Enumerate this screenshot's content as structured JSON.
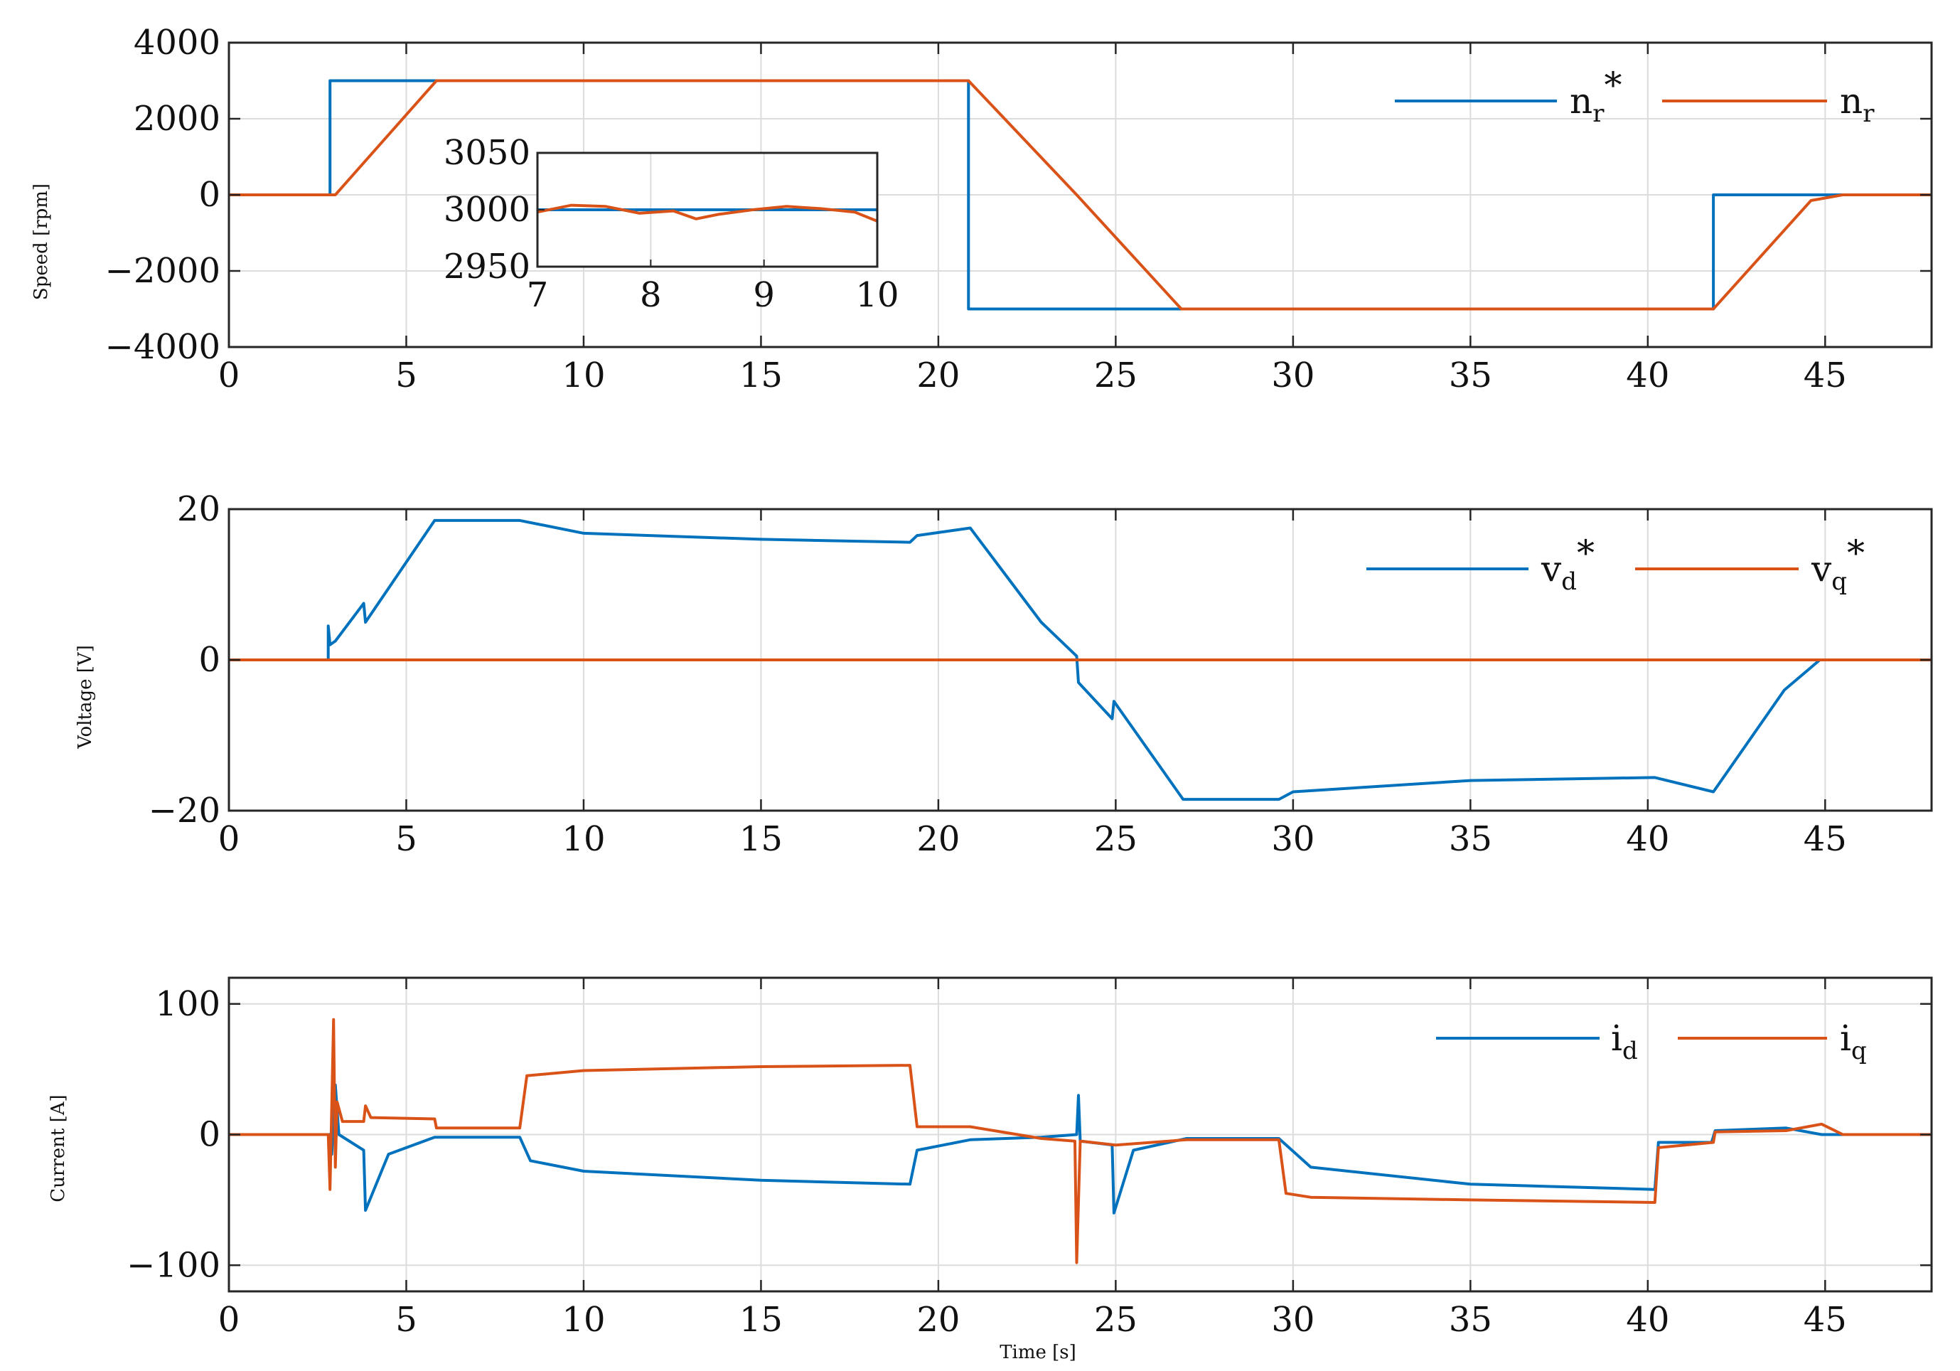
{
  "colors": {
    "blue": "#0072BD",
    "orange": "#D95319",
    "axis": "#262626",
    "grid": "#dcdcdc"
  },
  "chart_data": [
    {
      "type": "line",
      "id": "speed",
      "ylabel": "Speed [rpm]",
      "xlabel": "",
      "xlim": [
        0,
        48
      ],
      "ylim": [
        -4000,
        4000
      ],
      "xticks": [
        0,
        5,
        10,
        15,
        20,
        25,
        30,
        35,
        40,
        45
      ],
      "yticks": [
        -4000,
        -2000,
        0,
        2000,
        4000
      ],
      "ytick_labels": [
        "−4000",
        "−2000",
        "0",
        "2000",
        "4000"
      ],
      "grid": true,
      "legend_position": "top-right",
      "series": [
        {
          "name": "n_r*",
          "legend_main": "n",
          "legend_sub": "r",
          "legend_sup": "*",
          "color": "#0072BD",
          "x": [
            0,
            2.85,
            2.85,
            2.9,
            2.9,
            20.85,
            20.85,
            41.85,
            41.85,
            48
          ],
          "y": [
            0,
            0,
            3000,
            3000,
            3000,
            3000,
            -3000,
            -3000,
            0,
            0
          ]
        },
        {
          "name": "n_r",
          "legend_main": "n",
          "legend_sub": "r",
          "legend_sup": "",
          "color": "#D95319",
          "x": [
            0,
            2.85,
            3.0,
            5.85,
            20.85,
            23.9,
            26.85,
            41.85,
            44.6,
            45.5,
            48
          ],
          "y": [
            0,
            0,
            0,
            3000,
            3000,
            0,
            -3000,
            -3000,
            -150,
            0,
            0
          ]
        }
      ],
      "inset": {
        "xlim": [
          7,
          10
        ],
        "ylim": [
          2950,
          3050
        ],
        "xticks": [
          7,
          8,
          9,
          10
        ],
        "yticks": [
          2950,
          3000,
          3050
        ],
        "series": [
          {
            "name": "n_r*",
            "color": "#0072BD",
            "x": [
              7,
              10
            ],
            "y": [
              3000,
              3000
            ]
          },
          {
            "name": "n_r",
            "color": "#D95319",
            "x": [
              7,
              7.3,
              7.6,
              7.9,
              8.2,
              8.4,
              8.6,
              8.9,
              9.2,
              9.5,
              9.8,
              10
            ],
            "y": [
              2998,
              3004,
              3003,
              2997,
              2999,
              2992,
              2996,
              3000,
              3003,
              3001,
              2998,
              2990
            ]
          }
        ]
      }
    },
    {
      "type": "line",
      "id": "voltage",
      "ylabel": "Voltage [V]",
      "xlabel": "",
      "xlim": [
        0,
        48
      ],
      "ylim": [
        -20,
        20
      ],
      "xticks": [
        0,
        5,
        10,
        15,
        20,
        25,
        30,
        35,
        40,
        45
      ],
      "yticks": [
        -20,
        0,
        20
      ],
      "ytick_labels": [
        "−20",
        "0",
        "20"
      ],
      "grid": true,
      "legend_position": "top-right",
      "series": [
        {
          "name": "v_d*",
          "legend_main": "v",
          "legend_sub": "d",
          "legend_sup": "*",
          "color": "#0072BD",
          "x": [
            2.8,
            2.8,
            2.85,
            3.0,
            3.8,
            3.85,
            5.8,
            8.2,
            10,
            15,
            19.2,
            19.4,
            20.9,
            22.9,
            23.9,
            23.95,
            24.9,
            24.95,
            26.9,
            29.6,
            30,
            35,
            40.2,
            41.85,
            43.85,
            44.85
          ],
          "y": [
            0,
            4.5,
            2.0,
            2.5,
            7.5,
            5.0,
            18.5,
            18.5,
            16.8,
            16.0,
            15.6,
            16.5,
            17.5,
            5.0,
            0.5,
            -3.0,
            -7.8,
            -5.5,
            -18.5,
            -18.5,
            -17.5,
            -16.0,
            -15.6,
            -17.5,
            -4.0,
            0
          ]
        },
        {
          "name": "v_q*",
          "legend_main": "v",
          "legend_sub": "q",
          "legend_sup": "*",
          "color": "#D95319",
          "x": [
            0,
            48
          ],
          "y": [
            0,
            0
          ]
        }
      ]
    },
    {
      "type": "line",
      "id": "current",
      "ylabel": "Current [A]",
      "xlabel": "Time [s]",
      "xlim": [
        0,
        48
      ],
      "ylim": [
        -120,
        120
      ],
      "xticks": [
        0,
        5,
        10,
        15,
        20,
        25,
        30,
        35,
        40,
        45
      ],
      "yticks": [
        -100,
        0,
        100
      ],
      "ytick_labels": [
        "−100",
        "0",
        "100"
      ],
      "grid": true,
      "legend_position": "top-right",
      "series": [
        {
          "name": "i_d",
          "legend_main": "i",
          "legend_sub": "d",
          "legend_sup": "",
          "color": "#0072BD",
          "x": [
            0,
            2.85,
            2.9,
            3.0,
            3.1,
            3.8,
            3.85,
            4.5,
            5.8,
            8.2,
            8.5,
            10,
            15,
            19.2,
            19.4,
            20.9,
            22.9,
            23.9,
            23.95,
            24.0,
            24.9,
            24.95,
            25.5,
            27.0,
            29.6,
            30.5,
            35,
            40.2,
            40.3,
            41.8,
            41.9,
            43.9,
            44.9,
            45.5,
            48
          ],
          "y": [
            0,
            0,
            -15,
            38,
            0,
            -12,
            -58,
            -15,
            -2,
            -2,
            -20,
            -28,
            -35,
            -38,
            -12,
            -4,
            -2,
            0,
            30,
            -5,
            -8,
            -60,
            -12,
            -3,
            -3,
            -25,
            -38,
            -42,
            -6,
            -6,
            3,
            5,
            0,
            0,
            0
          ]
        },
        {
          "name": "i_q",
          "legend_main": "i",
          "legend_sub": "q",
          "legend_sup": "",
          "color": "#D95319",
          "x": [
            0,
            2.8,
            2.85,
            2.95,
            3.0,
            3.05,
            3.2,
            3.8,
            3.85,
            4.0,
            5.8,
            5.85,
            8.2,
            8.4,
            10,
            15,
            19.2,
            19.4,
            20.9,
            22.9,
            23.85,
            23.9,
            24.0,
            25.0,
            27.0,
            29.6,
            29.8,
            30.5,
            35,
            40.2,
            40.3,
            41.85,
            41.9,
            43.9,
            44.9,
            45.5,
            48
          ],
          "y": [
            0,
            0,
            -42,
            88,
            -25,
            25,
            10,
            10,
            22,
            13,
            12,
            5,
            5,
            45,
            49,
            52,
            53,
            6,
            6,
            -3,
            -5,
            -98,
            -5,
            -8,
            -4,
            -4,
            -45,
            -48,
            -50,
            -52,
            -10,
            -6,
            2,
            3,
            8,
            0,
            0
          ]
        }
      ]
    }
  ]
}
